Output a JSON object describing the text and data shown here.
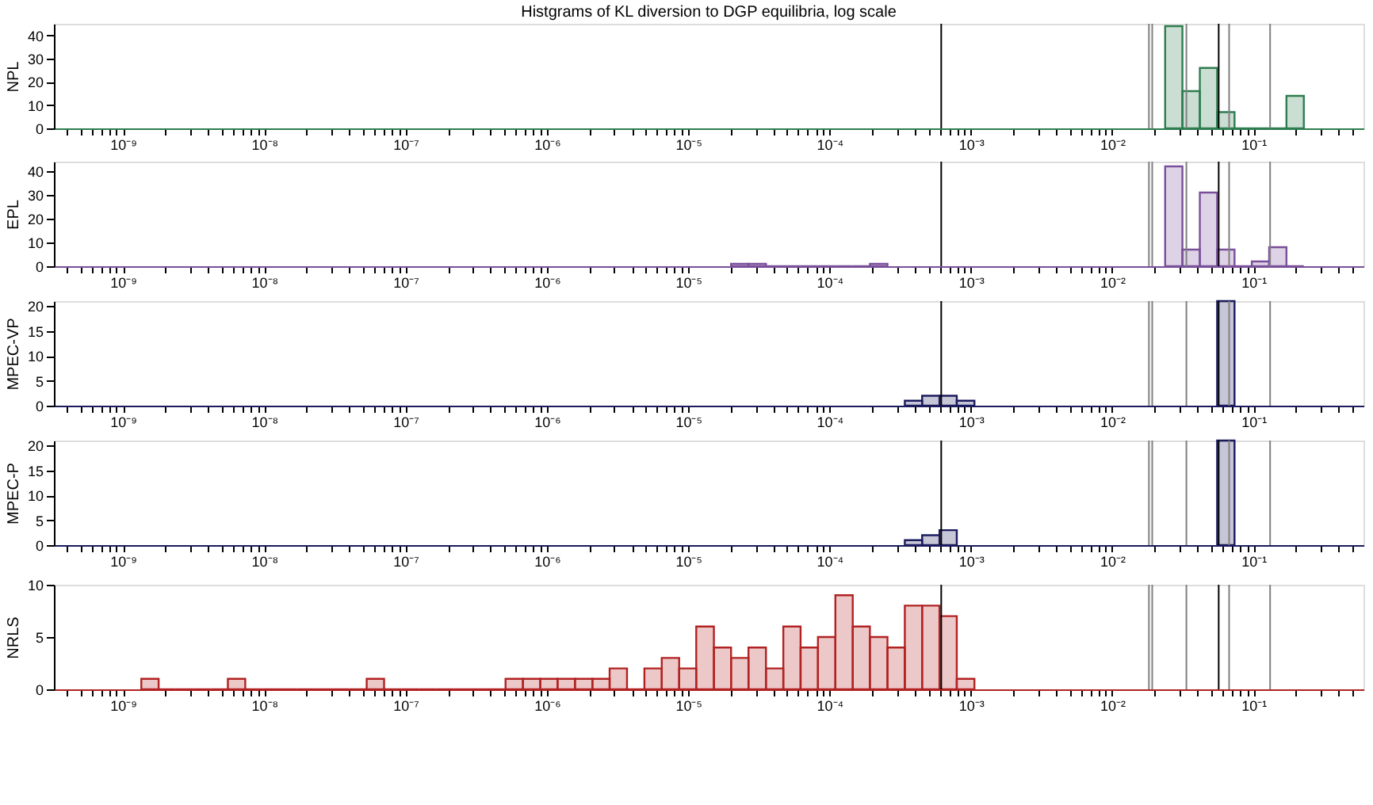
{
  "chart_data": [
    {
      "type": "histogram",
      "title": "Histgrams of KL diversion to DGP equilibria, log scale",
      "ylabel": "NPL",
      "color": "#2e7d4f",
      "bins": [
        0.0237,
        0.0314,
        0.0417,
        0.0553,
        0.0734,
        0.0973,
        0.129,
        0.171,
        0.227
      ],
      "values": [
        44,
        16,
        26,
        7,
        0,
        0,
        0,
        14
      ],
      "log": "x",
      "xlim": [
        3.25e-10,
        0.6
      ],
      "ylim": [
        0,
        45
      ],
      "yticks": [
        0,
        10,
        20,
        30,
        40
      ],
      "xticks": [
        {
          "value": 4e-10,
          "label": null
        },
        {
          "value": 5e-10,
          "label": null
        },
        {
          "value": 6e-10,
          "label": null
        },
        {
          "value": 7e-10,
          "label": null
        },
        {
          "value": 8e-10,
          "label": null
        },
        {
          "value": 9e-10,
          "label": null
        },
        {
          "value": 1e-09,
          "label": "10⁻⁹"
        },
        {
          "value": 2e-09,
          "label": null
        },
        {
          "value": 3e-09,
          "label": null
        },
        {
          "value": 4e-09,
          "label": null
        },
        {
          "value": 5e-09,
          "label": null
        },
        {
          "value": 6e-09,
          "label": null
        },
        {
          "value": 7e-09,
          "label": null
        },
        {
          "value": 8e-09,
          "label": null
        },
        {
          "value": 9e-09,
          "label": null
        },
        {
          "value": 1e-08,
          "label": "10⁻⁸"
        },
        {
          "value": 2e-08,
          "label": null
        },
        {
          "value": 3e-08,
          "label": null
        },
        {
          "value": 4e-08,
          "label": null
        },
        {
          "value": 5e-08,
          "label": null
        },
        {
          "value": 6e-08,
          "label": null
        },
        {
          "value": 7e-08,
          "label": null
        },
        {
          "value": 8e-08,
          "label": null
        },
        {
          "value": 9e-08,
          "label": null
        },
        {
          "value": 1e-07,
          "label": "10⁻⁷"
        },
        {
          "value": 2e-07,
          "label": null
        },
        {
          "value": 3e-07,
          "label": null
        },
        {
          "value": 4e-07,
          "label": null
        },
        {
          "value": 5e-07,
          "label": null
        },
        {
          "value": 6e-07,
          "label": null
        },
        {
          "value": 7e-07,
          "label": null
        },
        {
          "value": 8e-07,
          "label": null
        },
        {
          "value": 9e-07,
          "label": null
        },
        {
          "value": 1e-06,
          "label": "10⁻⁶"
        },
        {
          "value": 2e-06,
          "label": null
        },
        {
          "value": 3e-06,
          "label": null
        },
        {
          "value": 4e-06,
          "label": null
        },
        {
          "value": 5e-06,
          "label": null
        },
        {
          "value": 6e-06,
          "label": null
        },
        {
          "value": 7e-06,
          "label": null
        },
        {
          "value": 8e-06,
          "label": null
        },
        {
          "value": 9e-06,
          "label": null
        },
        {
          "value": 1e-05,
          "label": "10⁻⁵"
        },
        {
          "value": 2e-05,
          "label": null
        },
        {
          "value": 3e-05,
          "label": null
        },
        {
          "value": 4e-05,
          "label": null
        },
        {
          "value": 5e-05,
          "label": null
        },
        {
          "value": 6e-05,
          "label": null
        },
        {
          "value": 7e-05,
          "label": null
        },
        {
          "value": 8e-05,
          "label": null
        },
        {
          "value": 9e-05,
          "label": null
        },
        {
          "value": 0.0001,
          "label": "10⁻⁴"
        },
        {
          "value": 0.0002,
          "label": null
        },
        {
          "value": 0.0003,
          "label": null
        },
        {
          "value": 0.0004,
          "label": null
        },
        {
          "value": 0.0005,
          "label": null
        },
        {
          "value": 0.0006,
          "label": null
        },
        {
          "value": 0.0007,
          "label": null
        },
        {
          "value": 0.0008,
          "label": null
        },
        {
          "value": 0.0009,
          "label": null
        },
        {
          "value": 0.001,
          "label": "10⁻³"
        },
        {
          "value": 0.002,
          "label": null
        },
        {
          "value": 0.003,
          "label": null
        },
        {
          "value": 0.004,
          "label": null
        },
        {
          "value": 0.005,
          "label": null
        },
        {
          "value": 0.006,
          "label": null
        },
        {
          "value": 0.007,
          "label": null
        },
        {
          "value": 0.008,
          "label": null
        },
        {
          "value": 0.009,
          "label": null
        },
        {
          "value": 0.01,
          "label": "10⁻²"
        },
        {
          "value": 0.02,
          "label": null
        },
        {
          "value": 0.03,
          "label": null
        },
        {
          "value": 0.04,
          "label": null
        },
        {
          "value": 0.05,
          "label": null
        },
        {
          "value": 0.06,
          "label": null
        },
        {
          "value": 0.07,
          "label": null
        },
        {
          "value": 0.08,
          "label": null
        },
        {
          "value": 0.09,
          "label": null
        },
        {
          "value": 0.1,
          "label": "10⁻¹"
        },
        {
          "value": 0.2,
          "label": null
        },
        {
          "value": 0.3,
          "label": null
        },
        {
          "value": 0.4,
          "label": null
        },
        {
          "value": 0.5,
          "label": null
        }
      ],
      "ref_lines": [
        {
          "axis": "x",
          "value": 0.000617,
          "color": "#000000"
        },
        {
          "axis": "x",
          "value": 0.0182,
          "color": "#808080"
        },
        {
          "axis": "x",
          "value": 0.0192,
          "color": "#808080"
        },
        {
          "axis": "x",
          "value": 0.0335,
          "color": "#808080"
        },
        {
          "axis": "x",
          "value": 0.0567,
          "color": "#000000"
        },
        {
          "axis": "x",
          "value": 0.0672,
          "color": "#808080"
        },
        {
          "axis": "x",
          "value": 0.131,
          "color": "#808080"
        }
      ]
    },
    {
      "type": "histogram",
      "ylabel": "EPL",
      "color": "#7a4f9a",
      "bins": [
        2.01e-05,
        2.67e-05,
        3.55e-05,
        4.71e-05,
        6.24e-05,
        8.28e-05,
        0.00011,
        0.000146,
        0.000193,
        0.000257
      ],
      "values": [
        1,
        1,
        0,
        0,
        0,
        0,
        0,
        0,
        1
      ],
      "log": "x",
      "xlim": [
        3.25e-10,
        0.6
      ],
      "ylim": [
        0,
        44
      ],
      "yticks": [
        0,
        10,
        20,
        30,
        40
      ],
      "xticks": [
        {
          "value": 4e-10,
          "label": null
        },
        {
          "value": 5e-10,
          "label": null
        },
        {
          "value": 6e-10,
          "label": null
        },
        {
          "value": 7e-10,
          "label": null
        },
        {
          "value": 8e-10,
          "label": null
        },
        {
          "value": 9e-10,
          "label": null
        },
        {
          "value": 1e-09,
          "label": "10⁻⁹"
        },
        {
          "value": 2e-09,
          "label": null
        },
        {
          "value": 3e-09,
          "label": null
        },
        {
          "value": 4e-09,
          "label": null
        },
        {
          "value": 5e-09,
          "label": null
        },
        {
          "value": 6e-09,
          "label": null
        },
        {
          "value": 7e-09,
          "label": null
        },
        {
          "value": 8e-09,
          "label": null
        },
        {
          "value": 9e-09,
          "label": null
        },
        {
          "value": 1e-08,
          "label": "10⁻⁸"
        },
        {
          "value": 2e-08,
          "label": null
        },
        {
          "value": 3e-08,
          "label": null
        },
        {
          "value": 4e-08,
          "label": null
        },
        {
          "value": 5e-08,
          "label": null
        },
        {
          "value": 6e-08,
          "label": null
        },
        {
          "value": 7e-08,
          "label": null
        },
        {
          "value": 8e-08,
          "label": null
        },
        {
          "value": 9e-08,
          "label": null
        },
        {
          "value": 1e-07,
          "label": "10⁻⁷"
        },
        {
          "value": 2e-07,
          "label": null
        },
        {
          "value": 3e-07,
          "label": null
        },
        {
          "value": 4e-07,
          "label": null
        },
        {
          "value": 5e-07,
          "label": null
        },
        {
          "value": 6e-07,
          "label": null
        },
        {
          "value": 7e-07,
          "label": null
        },
        {
          "value": 8e-07,
          "label": null
        },
        {
          "value": 9e-07,
          "label": null
        },
        {
          "value": 1e-06,
          "label": "10⁻⁶"
        },
        {
          "value": 2e-06,
          "label": null
        },
        {
          "value": 3e-06,
          "label": null
        },
        {
          "value": 4e-06,
          "label": null
        },
        {
          "value": 5e-06,
          "label": null
        },
        {
          "value": 6e-06,
          "label": null
        },
        {
          "value": 7e-06,
          "label": null
        },
        {
          "value": 8e-06,
          "label": null
        },
        {
          "value": 9e-06,
          "label": null
        },
        {
          "value": 1e-05,
          "label": "10⁻⁵"
        },
        {
          "value": 2e-05,
          "label": null
        },
        {
          "value": 3e-05,
          "label": null
        },
        {
          "value": 4e-05,
          "label": null
        },
        {
          "value": 5e-05,
          "label": null
        },
        {
          "value": 6e-05,
          "label": null
        },
        {
          "value": 7e-05,
          "label": null
        },
        {
          "value": 8e-05,
          "label": null
        },
        {
          "value": 9e-05,
          "label": null
        },
        {
          "value": 0.0001,
          "label": "10⁻⁴"
        },
        {
          "value": 0.0002,
          "label": null
        },
        {
          "value": 0.0003,
          "label": null
        },
        {
          "value": 0.0004,
          "label": null
        },
        {
          "value": 0.0005,
          "label": null
        },
        {
          "value": 0.0006,
          "label": null
        },
        {
          "value": 0.0007,
          "label": null
        },
        {
          "value": 0.0008,
          "label": null
        },
        {
          "value": 0.0009,
          "label": null
        },
        {
          "value": 0.001,
          "label": "10⁻³"
        },
        {
          "value": 0.002,
          "label": null
        },
        {
          "value": 0.003,
          "label": null
        },
        {
          "value": 0.004,
          "label": null
        },
        {
          "value": 0.005,
          "label": null
        },
        {
          "value": 0.006,
          "label": null
        },
        {
          "value": 0.007,
          "label": null
        },
        {
          "value": 0.008,
          "label": null
        },
        {
          "value": 0.009,
          "label": null
        },
        {
          "value": 0.01,
          "label": "10⁻²"
        },
        {
          "value": 0.02,
          "label": null
        },
        {
          "value": 0.03,
          "label": null
        },
        {
          "value": 0.04,
          "label": null
        },
        {
          "value": 0.05,
          "label": null
        },
        {
          "value": 0.06,
          "label": null
        },
        {
          "value": 0.07,
          "label": null
        },
        {
          "value": 0.08,
          "label": null
        },
        {
          "value": 0.09,
          "label": null
        },
        {
          "value": 0.1,
          "label": "10⁻¹"
        },
        {
          "value": 0.2,
          "label": null
        },
        {
          "value": 0.3,
          "label": null
        },
        {
          "value": 0.4,
          "label": null
        },
        {
          "value": 0.5,
          "label": null
        }
      ],
      "ref_lines": [
        {
          "axis": "x",
          "value": 0.000617,
          "color": "#000000"
        },
        {
          "axis": "x",
          "value": 0.0182,
          "color": "#808080"
        },
        {
          "axis": "x",
          "value": 0.0192,
          "color": "#808080"
        },
        {
          "axis": "x",
          "value": 0.0335,
          "color": "#808080"
        },
        {
          "axis": "x",
          "value": 0.0567,
          "color": "#000000"
        },
        {
          "axis": "x",
          "value": 0.0672,
          "color": "#808080"
        },
        {
          "axis": "x",
          "value": 0.131,
          "color": "#808080"
        }
      ],
      "series": [
        {
          "type": "histogram",
          "color": "#7a4f9a",
          "bins": [
            0.0237,
            0.0314,
            0.0417,
            0.0553,
            0.0734,
            0.0973,
            0.129,
            0.171,
            0.227
          ],
          "values": [
            42,
            7,
            31,
            7,
            0,
            2,
            8,
            0
          ]
        }
      ]
    },
    {
      "type": "histogram",
      "ylabel": "MPEC-VP",
      "color": "#1b1b5e",
      "bins": [
        0.000341,
        0.000452,
        0.0006,
        0.000795,
        0.00106
      ],
      "values": [
        1,
        2,
        2,
        1
      ],
      "log": "x",
      "xlim": [
        3.25e-10,
        0.6
      ],
      "ylim": [
        0,
        21
      ],
      "yticks": [
        0,
        5,
        10,
        15,
        20
      ],
      "xticks": [
        {
          "value": 4e-10,
          "label": null
        },
        {
          "value": 5e-10,
          "label": null
        },
        {
          "value": 6e-10,
          "label": null
        },
        {
          "value": 7e-10,
          "label": null
        },
        {
          "value": 8e-10,
          "label": null
        },
        {
          "value": 9e-10,
          "label": null
        },
        {
          "value": 1e-09,
          "label": "10⁻⁹"
        },
        {
          "value": 2e-09,
          "label": null
        },
        {
          "value": 3e-09,
          "label": null
        },
        {
          "value": 4e-09,
          "label": null
        },
        {
          "value": 5e-09,
          "label": null
        },
        {
          "value": 6e-09,
          "label": null
        },
        {
          "value": 7e-09,
          "label": null
        },
        {
          "value": 8e-09,
          "label": null
        },
        {
          "value": 9e-09,
          "label": null
        },
        {
          "value": 1e-08,
          "label": "10⁻⁸"
        },
        {
          "value": 2e-08,
          "label": null
        },
        {
          "value": 3e-08,
          "label": null
        },
        {
          "value": 4e-08,
          "label": null
        },
        {
          "value": 5e-08,
          "label": null
        },
        {
          "value": 6e-08,
          "label": null
        },
        {
          "value": 7e-08,
          "label": null
        },
        {
          "value": 8e-08,
          "label": null
        },
        {
          "value": 9e-08,
          "label": null
        },
        {
          "value": 1e-07,
          "label": "10⁻⁷"
        },
        {
          "value": 2e-07,
          "label": null
        },
        {
          "value": 3e-07,
          "label": null
        },
        {
          "value": 4e-07,
          "label": null
        },
        {
          "value": 5e-07,
          "label": null
        },
        {
          "value": 6e-07,
          "label": null
        },
        {
          "value": 7e-07,
          "label": null
        },
        {
          "value": 8e-07,
          "label": null
        },
        {
          "value": 9e-07,
          "label": null
        },
        {
          "value": 1e-06,
          "label": "10⁻⁶"
        },
        {
          "value": 2e-06,
          "label": null
        },
        {
          "value": 3e-06,
          "label": null
        },
        {
          "value": 4e-06,
          "label": null
        },
        {
          "value": 5e-06,
          "label": null
        },
        {
          "value": 6e-06,
          "label": null
        },
        {
          "value": 7e-06,
          "label": null
        },
        {
          "value": 8e-06,
          "label": null
        },
        {
          "value": 9e-06,
          "label": null
        },
        {
          "value": 1e-05,
          "label": "10⁻⁵"
        },
        {
          "value": 2e-05,
          "label": null
        },
        {
          "value": 3e-05,
          "label": null
        },
        {
          "value": 4e-05,
          "label": null
        },
        {
          "value": 5e-05,
          "label": null
        },
        {
          "value": 6e-05,
          "label": null
        },
        {
          "value": 7e-05,
          "label": null
        },
        {
          "value": 8e-05,
          "label": null
        },
        {
          "value": 9e-05,
          "label": null
        },
        {
          "value": 0.0001,
          "label": "10⁻⁴"
        },
        {
          "value": 0.0002,
          "label": null
        },
        {
          "value": 0.0003,
          "label": null
        },
        {
          "value": 0.0004,
          "label": null
        },
        {
          "value": 0.0005,
          "label": null
        },
        {
          "value": 0.0006,
          "label": null
        },
        {
          "value": 0.0007,
          "label": null
        },
        {
          "value": 0.0008,
          "label": null
        },
        {
          "value": 0.0009,
          "label": null
        },
        {
          "value": 0.001,
          "label": "10⁻³"
        },
        {
          "value": 0.002,
          "label": null
        },
        {
          "value": 0.003,
          "label": null
        },
        {
          "value": 0.004,
          "label": null
        },
        {
          "value": 0.005,
          "label": null
        },
        {
          "value": 0.006,
          "label": null
        },
        {
          "value": 0.007,
          "label": null
        },
        {
          "value": 0.008,
          "label": null
        },
        {
          "value": 0.009,
          "label": null
        },
        {
          "value": 0.01,
          "label": "10⁻²"
        },
        {
          "value": 0.02,
          "label": null
        },
        {
          "value": 0.03,
          "label": null
        },
        {
          "value": 0.04,
          "label": null
        },
        {
          "value": 0.05,
          "label": null
        },
        {
          "value": 0.06,
          "label": null
        },
        {
          "value": 0.07,
          "label": null
        },
        {
          "value": 0.08,
          "label": null
        },
        {
          "value": 0.09,
          "label": null
        },
        {
          "value": 0.1,
          "label": "10⁻¹"
        },
        {
          "value": 0.2,
          "label": null
        },
        {
          "value": 0.3,
          "label": null
        },
        {
          "value": 0.4,
          "label": null
        },
        {
          "value": 0.5,
          "label": null
        }
      ],
      "ref_lines": [
        {
          "axis": "x",
          "value": 0.000617,
          "color": "#000000"
        },
        {
          "axis": "x",
          "value": 0.0182,
          "color": "#808080"
        },
        {
          "axis": "x",
          "value": 0.0192,
          "color": "#808080"
        },
        {
          "axis": "x",
          "value": 0.0335,
          "color": "#808080"
        },
        {
          "axis": "x",
          "value": 0.0567,
          "color": "#000000"
        },
        {
          "axis": "x",
          "value": 0.0672,
          "color": "#808080"
        },
        {
          "axis": "x",
          "value": 0.131,
          "color": "#808080"
        }
      ],
      "series": [
        {
          "type": "histogram",
          "color": "#1b1b5e",
          "bins": [
            0.0553,
            0.0734
          ],
          "values": [
            21
          ]
        }
      ]
    },
    {
      "type": "histogram",
      "ylabel": "MPEC-P",
      "color": "#1b1b5e",
      "bins": [
        0.000341,
        0.000452,
        0.0006,
        0.000795
      ],
      "values": [
        1,
        2,
        3
      ],
      "log": "x",
      "xlim": [
        3.25e-10,
        0.6
      ],
      "ylim": [
        0,
        21
      ],
      "yticks": [
        0,
        5,
        10,
        15,
        20
      ],
      "xticks": [
        {
          "value": 4e-10,
          "label": null
        },
        {
          "value": 5e-10,
          "label": null
        },
        {
          "value": 6e-10,
          "label": null
        },
        {
          "value": 7e-10,
          "label": null
        },
        {
          "value": 8e-10,
          "label": null
        },
        {
          "value": 9e-10,
          "label": null
        },
        {
          "value": 1e-09,
          "label": "10⁻⁹"
        },
        {
          "value": 2e-09,
          "label": null
        },
        {
          "value": 3e-09,
          "label": null
        },
        {
          "value": 4e-09,
          "label": null
        },
        {
          "value": 5e-09,
          "label": null
        },
        {
          "value": 6e-09,
          "label": null
        },
        {
          "value": 7e-09,
          "label": null
        },
        {
          "value": 8e-09,
          "label": null
        },
        {
          "value": 9e-09,
          "label": null
        },
        {
          "value": 1e-08,
          "label": "10⁻⁸"
        },
        {
          "value": 2e-08,
          "label": null
        },
        {
          "value": 3e-08,
          "label": null
        },
        {
          "value": 4e-08,
          "label": null
        },
        {
          "value": 5e-08,
          "label": null
        },
        {
          "value": 6e-08,
          "label": null
        },
        {
          "value": 7e-08,
          "label": null
        },
        {
          "value": 8e-08,
          "label": null
        },
        {
          "value": 9e-08,
          "label": null
        },
        {
          "value": 1e-07,
          "label": "10⁻⁷"
        },
        {
          "value": 2e-07,
          "label": null
        },
        {
          "value": 3e-07,
          "label": null
        },
        {
          "value": 4e-07,
          "label": null
        },
        {
          "value": 5e-07,
          "label": null
        },
        {
          "value": 6e-07,
          "label": null
        },
        {
          "value": 7e-07,
          "label": null
        },
        {
          "value": 8e-07,
          "label": null
        },
        {
          "value": 9e-07,
          "label": null
        },
        {
          "value": 1e-06,
          "label": "10⁻⁶"
        },
        {
          "value": 2e-06,
          "label": null
        },
        {
          "value": 3e-06,
          "label": null
        },
        {
          "value": 4e-06,
          "label": null
        },
        {
          "value": 5e-06,
          "label": null
        },
        {
          "value": 6e-06,
          "label": null
        },
        {
          "value": 7e-06,
          "label": null
        },
        {
          "value": 8e-06,
          "label": null
        },
        {
          "value": 9e-06,
          "label": null
        },
        {
          "value": 1e-05,
          "label": "10⁻⁵"
        },
        {
          "value": 2e-05,
          "label": null
        },
        {
          "value": 3e-05,
          "label": null
        },
        {
          "value": 4e-05,
          "label": null
        },
        {
          "value": 5e-05,
          "label": null
        },
        {
          "value": 6e-05,
          "label": null
        },
        {
          "value": 7e-05,
          "label": null
        },
        {
          "value": 8e-05,
          "label": null
        },
        {
          "value": 9e-05,
          "label": null
        },
        {
          "value": 0.0001,
          "label": "10⁻⁴"
        },
        {
          "value": 0.0002,
          "label": null
        },
        {
          "value": 0.0003,
          "label": null
        },
        {
          "value": 0.0004,
          "label": null
        },
        {
          "value": 0.0005,
          "label": null
        },
        {
          "value": 0.0006,
          "label": null
        },
        {
          "value": 0.0007,
          "label": null
        },
        {
          "value": 0.0008,
          "label": null
        },
        {
          "value": 0.0009,
          "label": null
        },
        {
          "value": 0.001,
          "label": "10⁻³"
        },
        {
          "value": 0.002,
          "label": null
        },
        {
          "value": 0.003,
          "label": null
        },
        {
          "value": 0.004,
          "label": null
        },
        {
          "value": 0.005,
          "label": null
        },
        {
          "value": 0.006,
          "label": null
        },
        {
          "value": 0.007,
          "label": null
        },
        {
          "value": 0.008,
          "label": null
        },
        {
          "value": 0.009,
          "label": null
        },
        {
          "value": 0.01,
          "label": "10⁻²"
        },
        {
          "value": 0.02,
          "label": null
        },
        {
          "value": 0.03,
          "label": null
        },
        {
          "value": 0.04,
          "label": null
        },
        {
          "value": 0.05,
          "label": null
        },
        {
          "value": 0.06,
          "label": null
        },
        {
          "value": 0.07,
          "label": null
        },
        {
          "value": 0.08,
          "label": null
        },
        {
          "value": 0.09,
          "label": null
        },
        {
          "value": 0.1,
          "label": "10⁻¹"
        },
        {
          "value": 0.2,
          "label": null
        },
        {
          "value": 0.3,
          "label": null
        },
        {
          "value": 0.4,
          "label": null
        },
        {
          "value": 0.5,
          "label": null
        }
      ],
      "ref_lines": [
        {
          "axis": "x",
          "value": 0.000617,
          "color": "#000000"
        },
        {
          "axis": "x",
          "value": 0.0182,
          "color": "#808080"
        },
        {
          "axis": "x",
          "value": 0.0192,
          "color": "#808080"
        },
        {
          "axis": "x",
          "value": 0.0335,
          "color": "#808080"
        },
        {
          "axis": "x",
          "value": 0.0567,
          "color": "#000000"
        },
        {
          "axis": "x",
          "value": 0.0672,
          "color": "#808080"
        },
        {
          "axis": "x",
          "value": 0.131,
          "color": "#808080"
        }
      ],
      "series": [
        {
          "type": "histogram",
          "color": "#1b1b5e",
          "bins": [
            0.0553,
            0.0734
          ],
          "values": [
            21
          ]
        }
      ]
    },
    {
      "type": "histogram",
      "ylabel": "NRLS",
      "color": "#b22222",
      "bins": [
        1.35e-09,
        1.79e-09,
        2.37e-09,
        3.15e-09,
        4.17e-09,
        5.53e-09,
        7.34e-09,
        9.74e-09,
        1.29e-08,
        1.71e-08,
        2.28e-08,
        3.02e-08,
        4e-08,
        5.31e-08,
        7.05e-08,
        9.35e-08,
        1.24e-07,
        1.65e-07,
        2.19e-07,
        2.9e-07,
        3.85e-07,
        5.1e-07,
        6.77e-07,
        8.98e-07,
        1.19e-06,
        1.58e-06,
        2.1e-06,
        2.78e-06,
        3.69e-06,
        4.9e-06,
        6.5e-06,
        8.63e-06,
        1.14e-05,
        1.52e-05,
        2.01e-05,
        2.67e-05,
        3.55e-05,
        4.71e-05,
        6.24e-05,
        8.28e-05,
        0.00011,
        0.000146,
        0.000193,
        0.000257,
        0.000341,
        0.000452,
        0.0006,
        0.000795,
        0.00106
      ],
      "values": [
        1,
        0,
        0,
        0,
        0,
        1,
        0,
        0,
        0,
        0,
        0,
        0,
        0,
        1,
        0,
        0,
        0,
        0,
        0,
        0,
        0,
        1,
        1,
        1,
        1,
        1,
        1,
        2,
        0,
        2,
        3,
        2,
        6,
        4,
        3,
        4,
        2,
        6,
        4,
        5,
        9,
        6,
        5,
        4,
        8,
        8,
        7,
        1
      ],
      "log": "x",
      "xlim": [
        3.25e-10,
        0.6
      ],
      "ylim": [
        0,
        10
      ],
      "yticks": [
        0,
        5,
        10
      ],
      "xticks": [
        {
          "value": 4e-10,
          "label": null
        },
        {
          "value": 5e-10,
          "label": null
        },
        {
          "value": 6e-10,
          "label": null
        },
        {
          "value": 7e-10,
          "label": null
        },
        {
          "value": 8e-10,
          "label": null
        },
        {
          "value": 9e-10,
          "label": null
        },
        {
          "value": 1e-09,
          "label": "10⁻⁹"
        },
        {
          "value": 2e-09,
          "label": null
        },
        {
          "value": 3e-09,
          "label": null
        },
        {
          "value": 4e-09,
          "label": null
        },
        {
          "value": 5e-09,
          "label": null
        },
        {
          "value": 6e-09,
          "label": null
        },
        {
          "value": 7e-09,
          "label": null
        },
        {
          "value": 8e-09,
          "label": null
        },
        {
          "value": 9e-09,
          "label": null
        },
        {
          "value": 1e-08,
          "label": "10⁻⁸"
        },
        {
          "value": 2e-08,
          "label": null
        },
        {
          "value": 3e-08,
          "label": null
        },
        {
          "value": 4e-08,
          "label": null
        },
        {
          "value": 5e-08,
          "label": null
        },
        {
          "value": 6e-08,
          "label": null
        },
        {
          "value": 7e-08,
          "label": null
        },
        {
          "value": 8e-08,
          "label": null
        },
        {
          "value": 9e-08,
          "label": null
        },
        {
          "value": 1e-07,
          "label": "10⁻⁷"
        },
        {
          "value": 2e-07,
          "label": null
        },
        {
          "value": 3e-07,
          "label": null
        },
        {
          "value": 4e-07,
          "label": null
        },
        {
          "value": 5e-07,
          "label": null
        },
        {
          "value": 6e-07,
          "label": null
        },
        {
          "value": 7e-07,
          "label": null
        },
        {
          "value": 8e-07,
          "label": null
        },
        {
          "value": 9e-07,
          "label": null
        },
        {
          "value": 1e-06,
          "label": "10⁻⁶"
        },
        {
          "value": 2e-06,
          "label": null
        },
        {
          "value": 3e-06,
          "label": null
        },
        {
          "value": 4e-06,
          "label": null
        },
        {
          "value": 5e-06,
          "label": null
        },
        {
          "value": 6e-06,
          "label": null
        },
        {
          "value": 7e-06,
          "label": null
        },
        {
          "value": 8e-06,
          "label": null
        },
        {
          "value": 9e-06,
          "label": null
        },
        {
          "value": 1e-05,
          "label": "10⁻⁵"
        },
        {
          "value": 2e-05,
          "label": null
        },
        {
          "value": 3e-05,
          "label": null
        },
        {
          "value": 4e-05,
          "label": null
        },
        {
          "value": 5e-05,
          "label": null
        },
        {
          "value": 6e-05,
          "label": null
        },
        {
          "value": 7e-05,
          "label": null
        },
        {
          "value": 8e-05,
          "label": null
        },
        {
          "value": 9e-05,
          "label": null
        },
        {
          "value": 0.0001,
          "label": "10⁻⁴"
        },
        {
          "value": 0.0002,
          "label": null
        },
        {
          "value": 0.0003,
          "label": null
        },
        {
          "value": 0.0004,
          "label": null
        },
        {
          "value": 0.0005,
          "label": null
        },
        {
          "value": 0.0006,
          "label": null
        },
        {
          "value": 0.0007,
          "label": null
        },
        {
          "value": 0.0008,
          "label": null
        },
        {
          "value": 0.0009,
          "label": null
        },
        {
          "value": 0.001,
          "label": "10⁻³"
        },
        {
          "value": 0.002,
          "label": null
        },
        {
          "value": 0.003,
          "label": null
        },
        {
          "value": 0.004,
          "label": null
        },
        {
          "value": 0.005,
          "label": null
        },
        {
          "value": 0.006,
          "label": null
        },
        {
          "value": 0.007,
          "label": null
        },
        {
          "value": 0.008,
          "label": null
        },
        {
          "value": 0.009,
          "label": null
        },
        {
          "value": 0.01,
          "label": "10⁻²"
        },
        {
          "value": 0.02,
          "label": null
        },
        {
          "value": 0.03,
          "label": null
        },
        {
          "value": 0.04,
          "label": null
        },
        {
          "value": 0.05,
          "label": null
        },
        {
          "value": 0.06,
          "label": null
        },
        {
          "value": 0.07,
          "label": null
        },
        {
          "value": 0.08,
          "label": null
        },
        {
          "value": 0.09,
          "label": null
        },
        {
          "value": 0.1,
          "label": "10⁻¹"
        },
        {
          "value": 0.2,
          "label": null
        },
        {
          "value": 0.3,
          "label": null
        },
        {
          "value": 0.4,
          "label": null
        },
        {
          "value": 0.5,
          "label": null
        }
      ],
      "ref_lines": [
        {
          "axis": "x",
          "value": 0.000617,
          "color": "#000000"
        },
        {
          "axis": "x",
          "value": 0.0182,
          "color": "#808080"
        },
        {
          "axis": "x",
          "value": 0.0192,
          "color": "#808080"
        },
        {
          "axis": "x",
          "value": 0.0335,
          "color": "#808080"
        },
        {
          "axis": "x",
          "value": 0.0567,
          "color": "#000000"
        },
        {
          "axis": "x",
          "value": 0.0672,
          "color": "#808080"
        },
        {
          "axis": "x",
          "value": 0.131,
          "color": "#808080"
        }
      ]
    }
  ]
}
